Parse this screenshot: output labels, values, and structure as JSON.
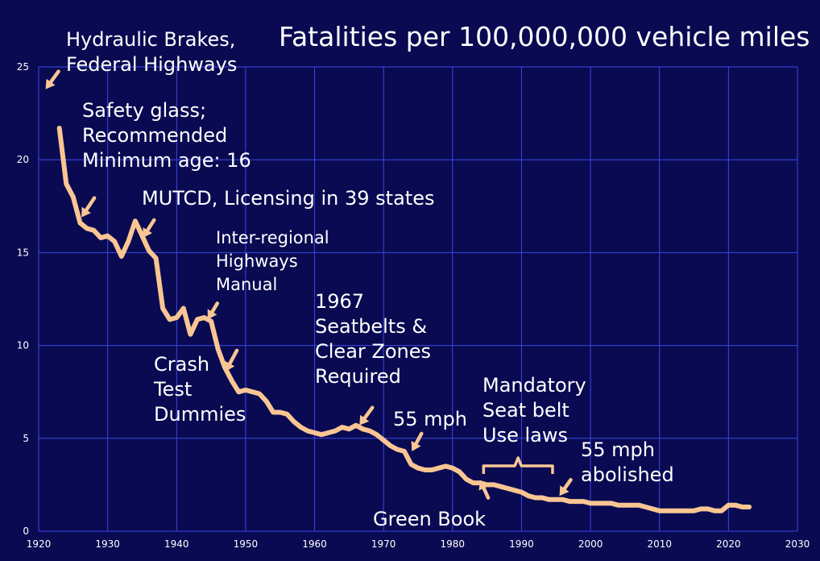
{
  "chart_data": {
    "type": "line",
    "title": "Fatalities per 100,000,000 vehicle miles",
    "xlabel": "",
    "ylabel": "",
    "xlim": [
      1920,
      2030
    ],
    "ylim": [
      0,
      25
    ],
    "x_ticks": [
      "1920",
      "1930",
      "1940",
      "1950",
      "1960",
      "1970",
      "1980",
      "1990",
      "2000",
      "2010",
      "2020",
      "2030"
    ],
    "y_ticks": [
      "0",
      "5",
      "10",
      "15",
      "20",
      "25"
    ],
    "grid": true,
    "legend": "none",
    "series": [
      {
        "x": [
          1923,
          1924,
          1925,
          1926,
          1927,
          1928,
          1929,
          1930,
          1931,
          1932,
          1933,
          1934,
          1935,
          1936,
          1937,
          1938,
          1939,
          1940,
          1941,
          1942,
          1943,
          1944,
          1945,
          1946,
          1947,
          1948,
          1949,
          1950,
          1951,
          1952,
          1953,
          1954,
          1955,
          1956,
          1957,
          1958,
          1959,
          1960,
          1961,
          1962,
          1963,
          1964,
          1965,
          1966,
          1967,
          1968,
          1969,
          1970,
          1971,
          1972,
          1973,
          1974,
          1975,
          1976,
          1977,
          1978,
          1979,
          1980,
          1981,
          1982,
          1983,
          1984,
          1985,
          1986,
          1987,
          1988,
          1989,
          1990,
          1991,
          1992,
          1993,
          1994,
          1995,
          1996,
          1997,
          1998,
          1999,
          2000,
          2001,
          2002,
          2003,
          2004,
          2005,
          2006,
          2007,
          2008,
          2009,
          2010,
          2011,
          2012,
          2013,
          2014,
          2015,
          2016,
          2017,
          2018,
          2019,
          2020,
          2021,
          2022,
          2023
        ],
        "y": [
          21.7,
          18.7,
          18.0,
          16.6,
          16.3,
          16.2,
          15.8,
          15.9,
          15.6,
          14.8,
          15.6,
          16.7,
          15.9,
          15.1,
          14.7,
          12.0,
          11.4,
          11.5,
          12.0,
          10.6,
          11.4,
          11.5,
          11.3,
          9.8,
          8.8,
          8.1,
          7.5,
          7.6,
          7.5,
          7.4,
          7.0,
          6.4,
          6.4,
          6.3,
          5.9,
          5.6,
          5.4,
          5.3,
          5.2,
          5.3,
          5.4,
          5.6,
          5.5,
          5.7,
          5.5,
          5.4,
          5.2,
          4.9,
          4.6,
          4.4,
          4.3,
          3.6,
          3.4,
          3.3,
          3.3,
          3.4,
          3.5,
          3.4,
          3.2,
          2.8,
          2.6,
          2.6,
          2.5,
          2.5,
          2.4,
          2.3,
          2.2,
          2.1,
          1.9,
          1.8,
          1.8,
          1.7,
          1.7,
          1.7,
          1.6,
          1.6,
          1.6,
          1.5,
          1.5,
          1.5,
          1.5,
          1.4,
          1.4,
          1.4,
          1.4,
          1.3,
          1.2,
          1.1,
          1.1,
          1.1,
          1.1,
          1.1,
          1.1,
          1.2,
          1.2,
          1.1,
          1.1,
          1.4,
          1.4,
          1.3,
          1.3
        ],
        "color": "#f9c693"
      }
    ],
    "annotations": [
      {
        "text": "Hydraulic Brakes,\nFederal Highways",
        "arrow_tip": [
          1921,
          23.8
        ]
      },
      {
        "text": "Safety glass;\nRecommended\nMinimum age: 16",
        "arrow_tip": [
          1926.2,
          16.9
        ]
      },
      {
        "text": "MUTCD, Licensing in 39 states",
        "arrow_tip": [
          1935.1,
          15.8
        ]
      },
      {
        "text": "Inter-regional\nHighways\nManual",
        "arrow_tip": [
          1944.5,
          11.4
        ]
      },
      {
        "text": "Crash\nTest\nDummies",
        "arrow_tip": [
          1947.1,
          8.6
        ]
      },
      {
        "text": "1967\nSeatbelts &\nClear Zones\nRequired",
        "arrow_tip": [
          1966.5,
          5.7
        ]
      },
      {
        "text": "55 mph",
        "arrow_tip": [
          1974.1,
          4.3
        ]
      },
      {
        "text": "Mandatory\nSeat belt\nUse laws",
        "bracket": [
          1984.5,
          1994.5
        ]
      },
      {
        "text": "55 mph\nabolished",
        "arrow_tip": [
          1995.5,
          1.9
        ]
      },
      {
        "text": "Green Book",
        "arrow_tip": [
          1984.0,
          2.75
        ]
      }
    ]
  }
}
